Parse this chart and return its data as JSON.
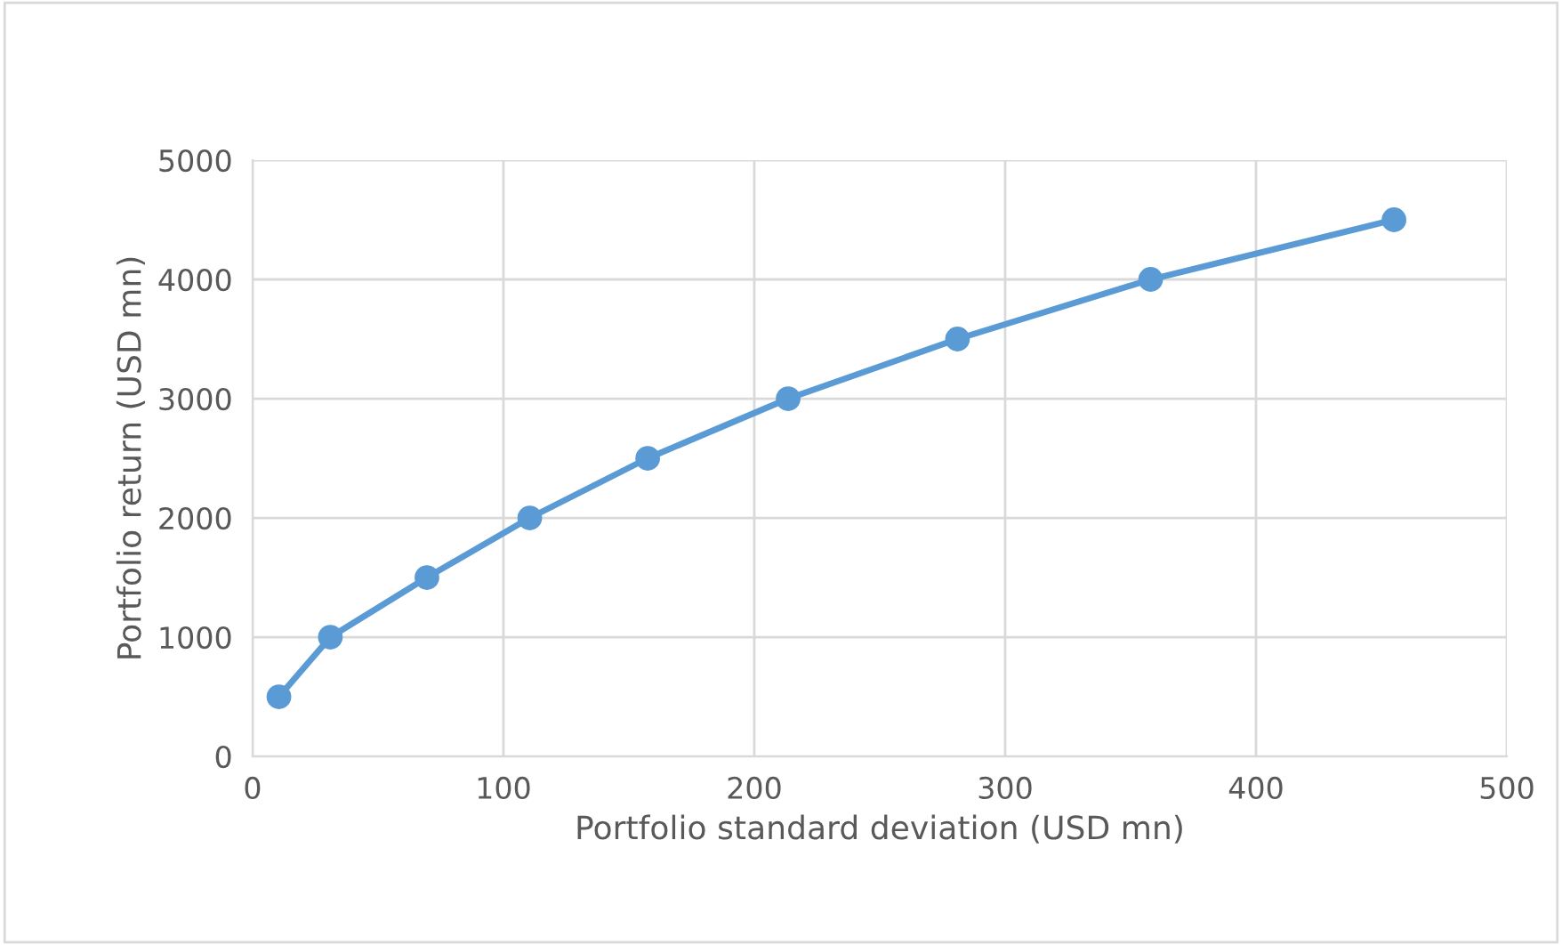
{
  "chart_data": {
    "type": "line",
    "xlabel": "Portfolio standard deviation (USD mn)",
    "ylabel": "Portfolio return (USD mn)",
    "x": [
      10.5,
      31,
      69.5,
      110.5,
      157.5,
      213.5,
      281,
      358,
      455
    ],
    "series": [
      {
        "color": "#5b9bd5",
        "values": [
          500,
          1000,
          1500,
          2000,
          2500,
          3000,
          3500,
          4000,
          4500
        ]
      }
    ],
    "xlim": [
      0,
      500
    ],
    "xticks": [
      0,
      100,
      200,
      300,
      400,
      500
    ],
    "ylim": [
      0,
      5000
    ],
    "yticks": [
      0,
      1000,
      2000,
      3000,
      4000,
      5000
    ],
    "grid": true,
    "marker": "circle",
    "line_style": "solid"
  }
}
